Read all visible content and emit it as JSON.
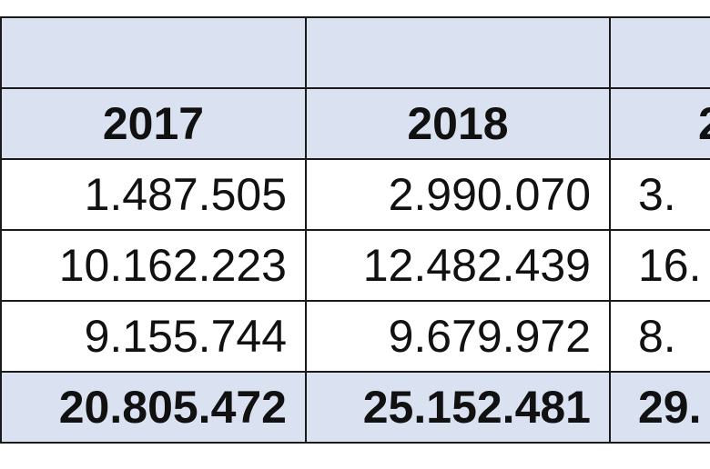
{
  "table": {
    "header_blank": [
      "",
      "",
      ""
    ],
    "years": [
      "2017",
      "2018",
      "2"
    ],
    "rows": [
      [
        "1.487.505",
        "2.990.070",
        "3."
      ],
      [
        "10.162.223",
        "12.482.439",
        "16."
      ],
      [
        "9.155.744",
        "9.679.972",
        "8."
      ]
    ],
    "total": [
      "20.805.472",
      "25.152.481",
      "29."
    ]
  },
  "colors": {
    "header_fill": "#dae1f1",
    "border": "#1a1a1a",
    "text": "#111111"
  }
}
